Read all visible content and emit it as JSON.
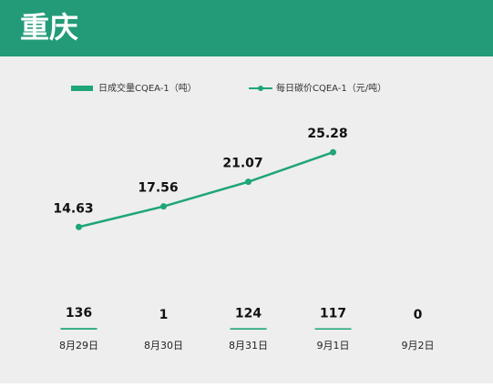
{
  "chart_data": {
    "type": "bar-line",
    "title": "重庆",
    "categories": [
      "8月29日",
      "8月30日",
      "8月31日",
      "9月1日",
      "9月2日"
    ],
    "series": [
      {
        "name": "日成交量CQEA-1（吨）",
        "color": "#1fa57a",
        "type": "bar",
        "axis": "y2",
        "values": [
          136,
          1,
          124,
          117,
          0
        ]
      },
      {
        "name": "每日碳价CQEA-1（元/吨）",
        "color": "#1fa57a",
        "type": "line",
        "values": [
          14.63,
          17.56,
          21.07,
          25.28,
          null
        ]
      }
    ],
    "ylim": [
      0,
      34
    ],
    "y2lim": [
      0,
      20000
    ],
    "legend": "top"
  }
}
